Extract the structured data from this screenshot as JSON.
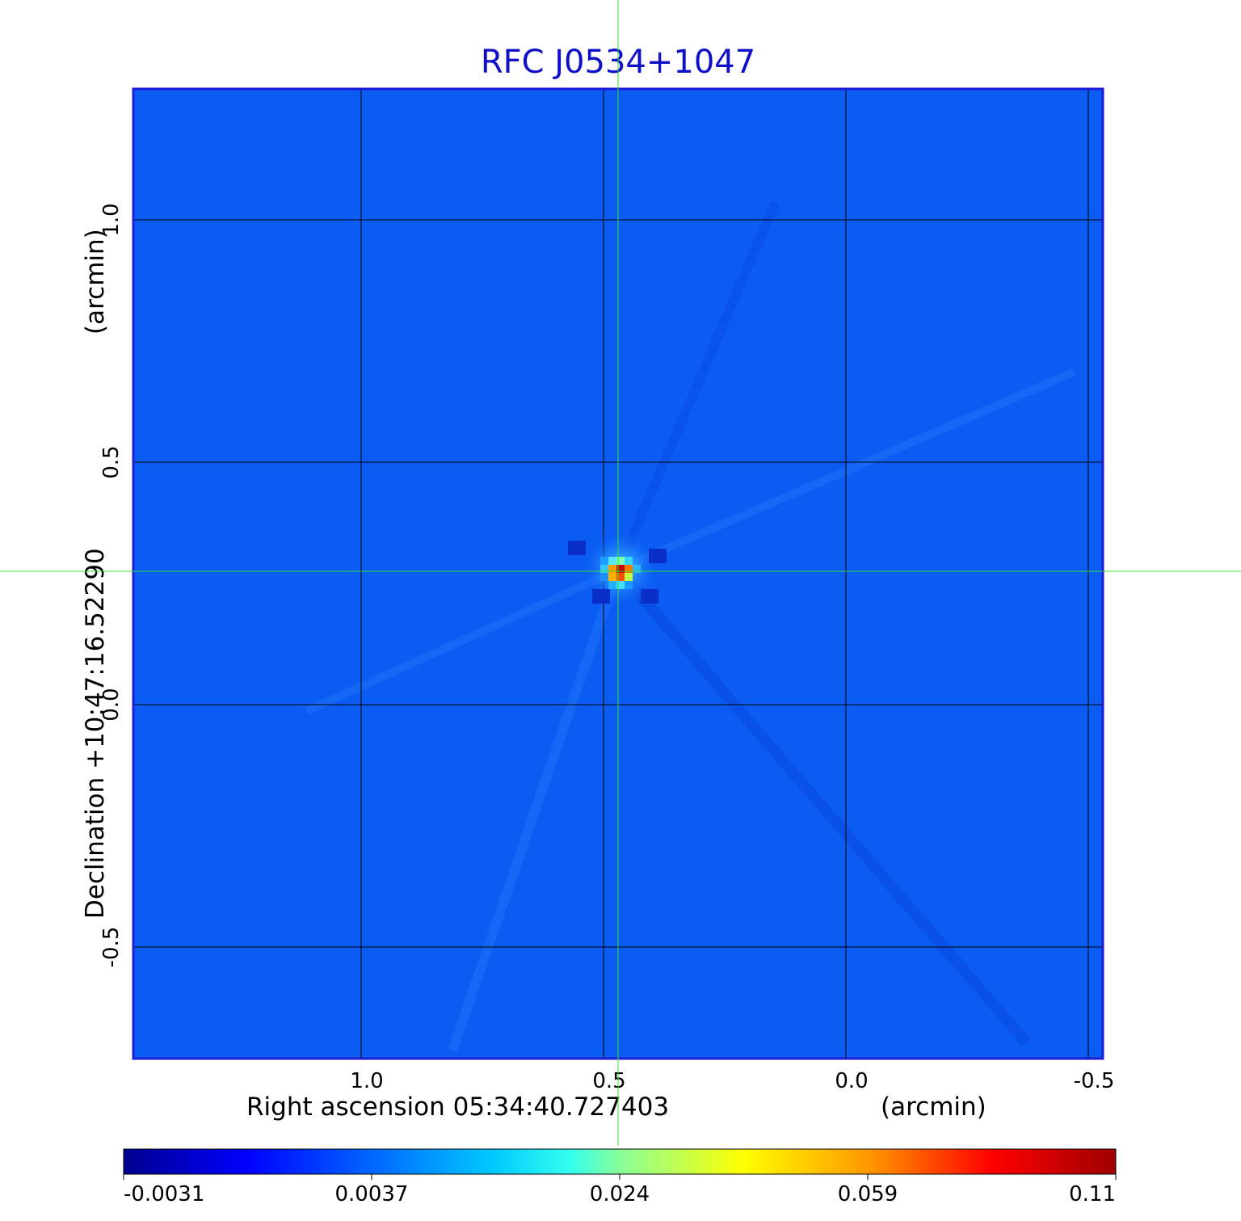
{
  "chart_data": {
    "type": "heatmap",
    "title": "RFC J0534+1047",
    "xlabel": "Right ascension  05:34:40.727403",
    "xlabel_unit": "(arcmin)",
    "ylabel": "Declination  +10:47:16.52290",
    "ylabel_unit": "(arcmin)",
    "xlim": [
      1.47,
      -0.53
    ],
    "ylim": [
      -0.73,
      1.27
    ],
    "x_ticks": [
      {
        "value": 1.0,
        "label": "1.0"
      },
      {
        "value": 0.5,
        "label": "0.5"
      },
      {
        "value": 0.0,
        "label": "0.0"
      },
      {
        "value": -0.5,
        "label": "-0.5"
      }
    ],
    "y_ticks": [
      {
        "value": 1.0,
        "label": "1.0"
      },
      {
        "value": 0.5,
        "label": "0.5"
      },
      {
        "value": 0.0,
        "label": "0.0"
      },
      {
        "value": -0.5,
        "label": "-0.5"
      }
    ],
    "grid": true,
    "crosshair": {
      "x": 0.47,
      "y": 0.275,
      "color": "#30e030"
    },
    "source_peak": {
      "x": 0.465,
      "y": 0.28,
      "peak_value": 0.11
    },
    "background_value": -0.0005,
    "colormap": "jet",
    "colorbar": {
      "ticks": [
        "-0.0031",
        "0.0037",
        "0.024",
        "0.059",
        "0.11"
      ],
      "min": -0.0031,
      "max": 0.11
    }
  }
}
